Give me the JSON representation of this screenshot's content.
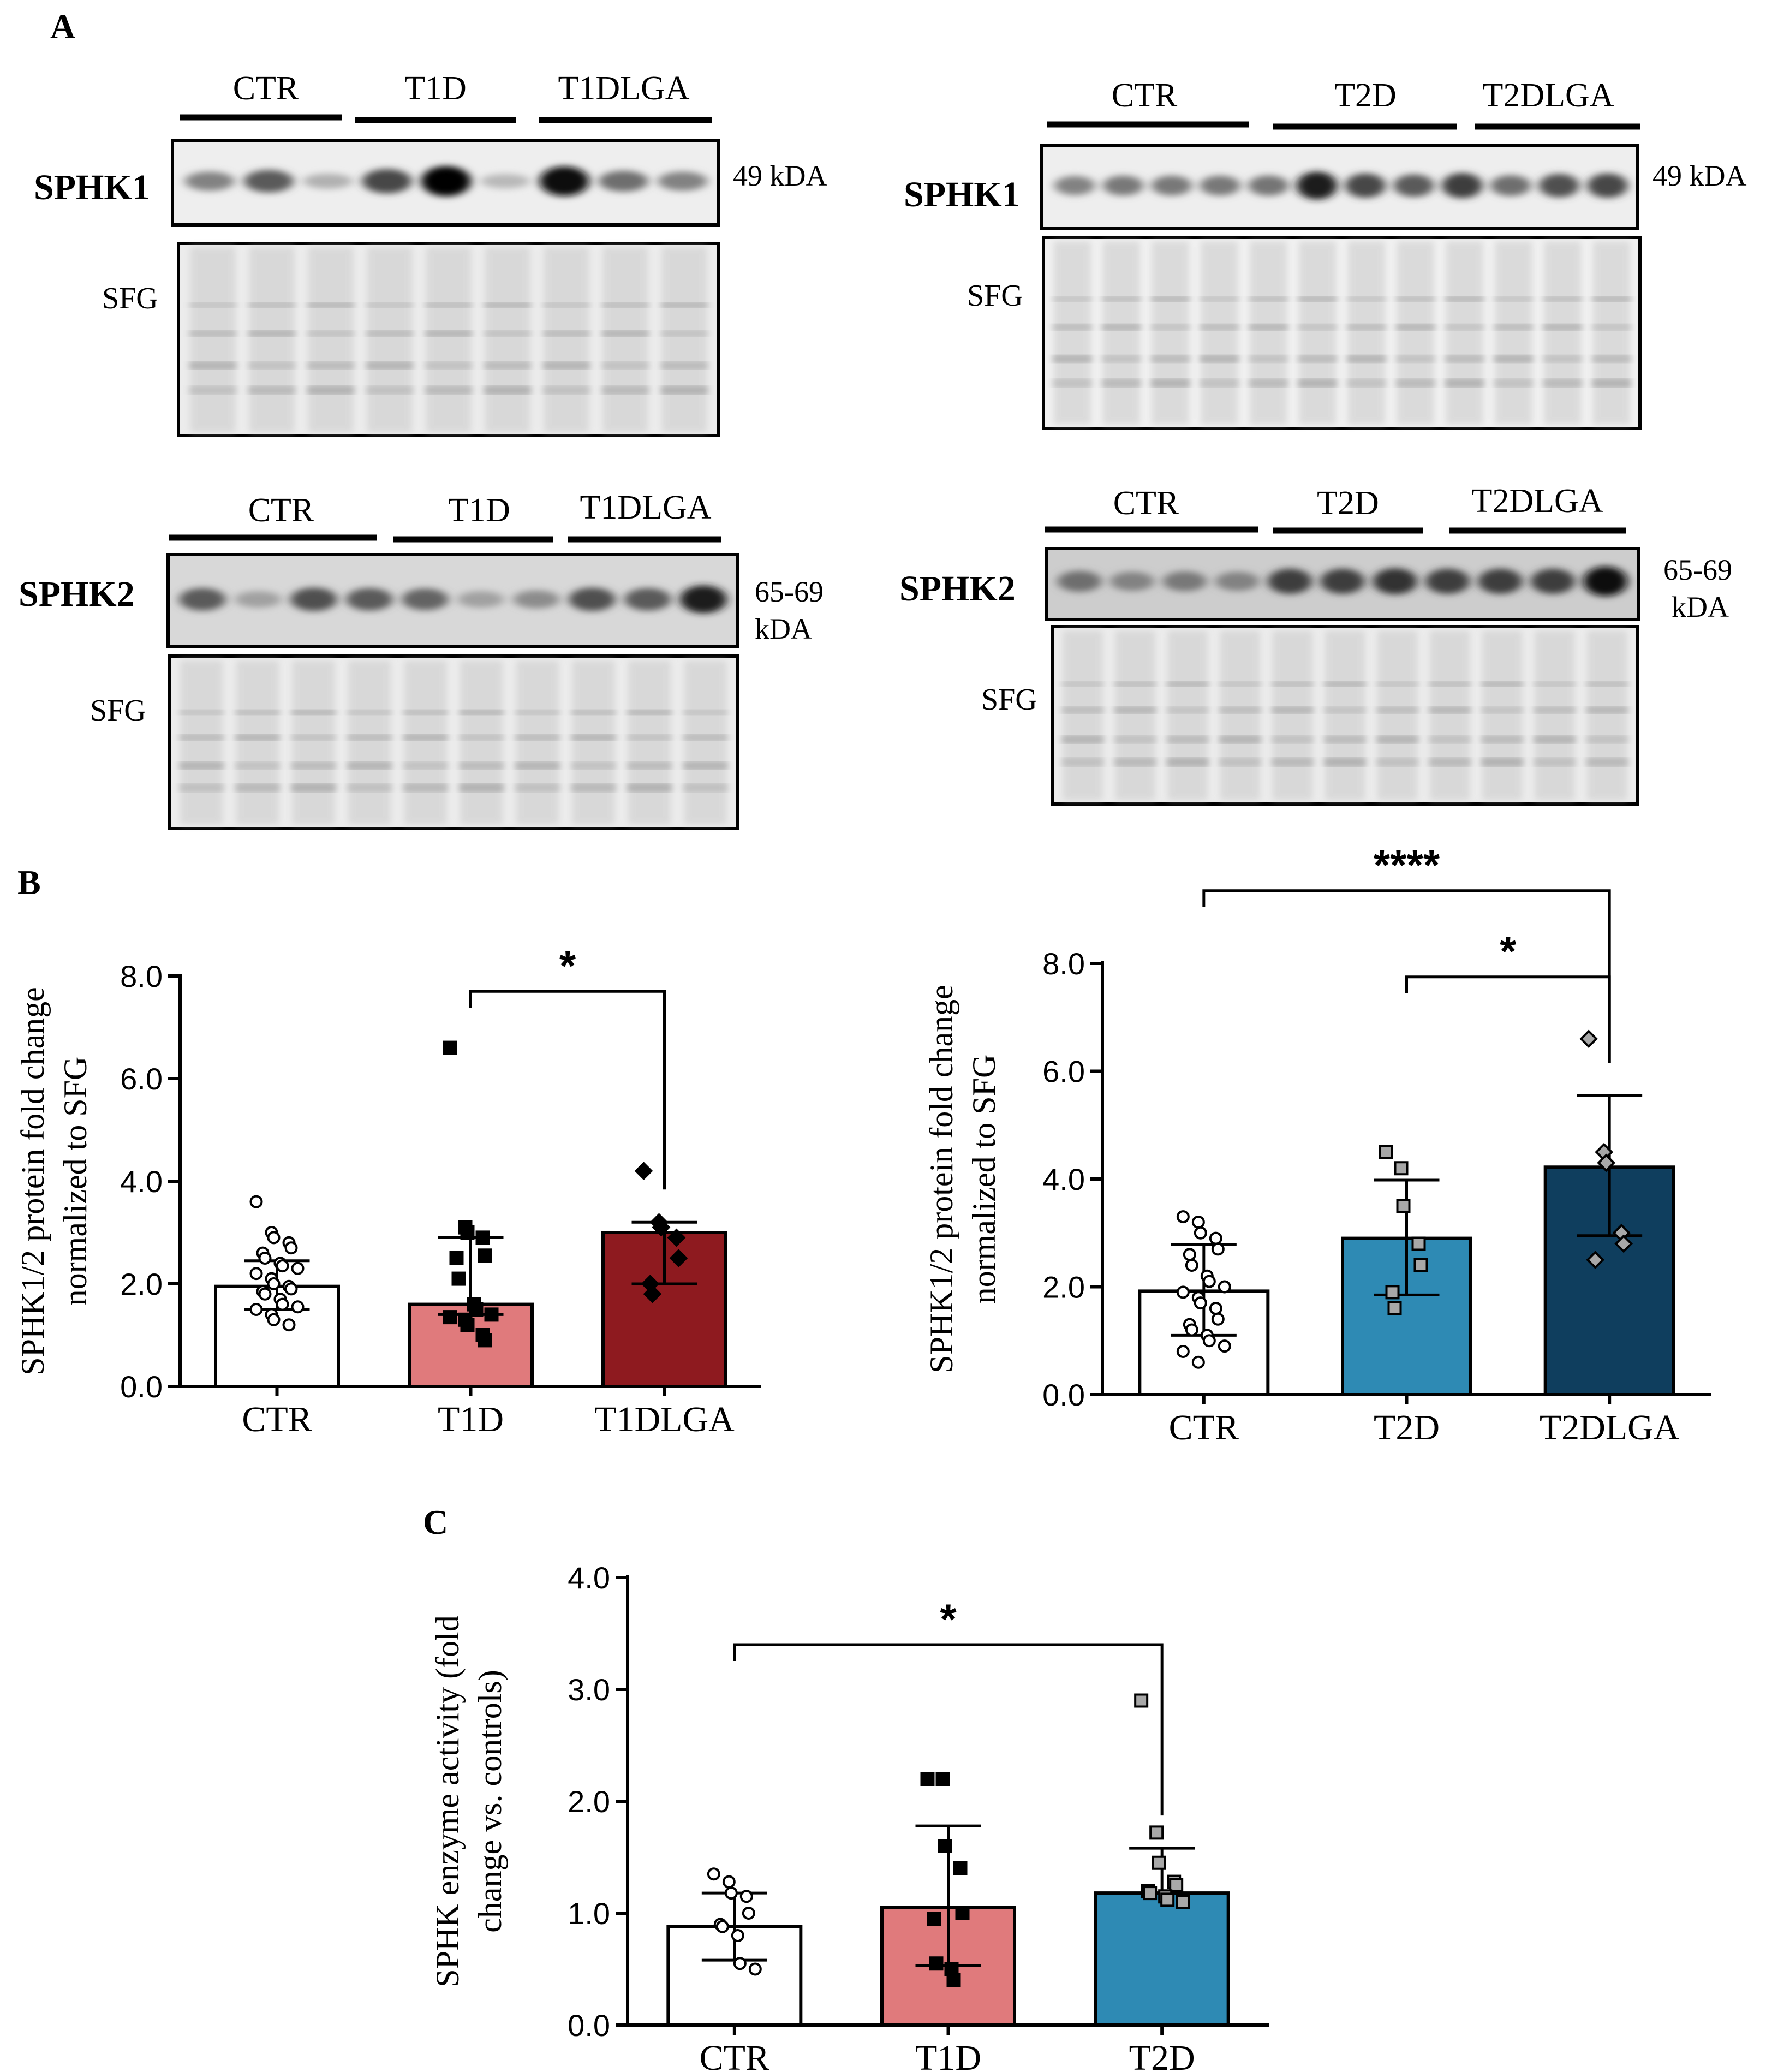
{
  "figure": {
    "panel_labels": {
      "a": "A",
      "b": "B",
      "c": "C"
    }
  },
  "blots": [
    {
      "id": "sphk1-t1",
      "protein": "SPHK1",
      "loading": "SFG",
      "size": "49 kDA",
      "groups": [
        "CTR",
        "T1D",
        "T1DLGA"
      ],
      "band_intensity": [
        0.35,
        0.55,
        0.12,
        0.65,
        0.98,
        0.08,
        0.95,
        0.45,
        0.35
      ]
    },
    {
      "id": "sphk1-t2",
      "protein": "SPHK1",
      "loading": "SFG",
      "size": "49 kDA",
      "groups": [
        "CTR",
        "T2D",
        "T2DLGA"
      ],
      "band_intensity": [
        0.35,
        0.4,
        0.4,
        0.4,
        0.42,
        0.85,
        0.65,
        0.55,
        0.7,
        0.45,
        0.6,
        0.65
      ]
    },
    {
      "id": "sphk2-t1",
      "protein": "SPHK2",
      "loading": "SFG",
      "size_line1": "65-69",
      "size_line2": "kDA",
      "groups": [
        "CTR",
        "T1D",
        "T1DLGA"
      ],
      "band_intensity": [
        0.55,
        0.2,
        0.6,
        0.55,
        0.5,
        0.2,
        0.3,
        0.6,
        0.55,
        0.85
      ]
    },
    {
      "id": "sphk2-t2",
      "protein": "SPHK2",
      "loading": "SFG",
      "size_line1": "65-69",
      "size_line2": "kDA",
      "groups": [
        "CTR",
        "T2D",
        "T2DLGA"
      ],
      "band_intensity": [
        0.45,
        0.35,
        0.4,
        0.35,
        0.7,
        0.7,
        0.75,
        0.7,
        0.7,
        0.7,
        0.95
      ]
    }
  ],
  "chart_data": [
    {
      "id": "panel-b-t1",
      "type": "bar",
      "ylabel_line1": "SPHK1/2 protein fold change",
      "ylabel_line2": "normalized to SFG",
      "ylim": [
        0,
        8
      ],
      "yticks": [
        "0.0",
        "2.0",
        "4.0",
        "6.0",
        "8.0"
      ],
      "categories": [
        "CTR",
        "T1D",
        "T1DLGA"
      ],
      "values": [
        1.95,
        1.6,
        3.0
      ],
      "error_low": [
        1.5,
        1.4,
        2.0
      ],
      "error_high": [
        2.45,
        2.9,
        3.2
      ],
      "colors": [
        "#ffffff",
        "#e07a7c",
        "#8e1a1f"
      ],
      "markers": [
        "circle-open",
        "square-filled",
        "diamond-filled"
      ],
      "points": [
        [
          3.6,
          3.0,
          2.9,
          2.8,
          2.7,
          2.6,
          2.5,
          2.4,
          2.35,
          2.3,
          2.2,
          2.1,
          2.0,
          1.95,
          1.9,
          1.85,
          1.8,
          1.7,
          1.6,
          1.55,
          1.5,
          1.4,
          1.3,
          1.2
        ],
        [
          6.6,
          3.1,
          3.0,
          2.9,
          2.55,
          2.5,
          2.1,
          1.6,
          1.5,
          1.4,
          1.35,
          1.3,
          1.2,
          1.0,
          0.9
        ],
        [
          4.2,
          3.2,
          3.1,
          2.9,
          2.5,
          2.0,
          1.8
        ]
      ],
      "significance": [
        {
          "from": 1,
          "to": 2,
          "label": "*",
          "y": 7.7
        }
      ]
    },
    {
      "id": "panel-b-t2",
      "type": "bar",
      "ylabel_line1": "SPHK1/2 protein fold change",
      "ylabel_line2": "normalized to SFG",
      "ylim": [
        0,
        8
      ],
      "yticks": [
        "0.0",
        "2.0",
        "4.0",
        "6.0",
        "8.0"
      ],
      "categories": [
        "CTR",
        "T2D",
        "T2DLGA"
      ],
      "values": [
        1.92,
        2.9,
        4.22
      ],
      "error_low": [
        1.1,
        1.85,
        2.95
      ],
      "error_high": [
        2.78,
        3.98,
        5.55
      ],
      "colors": [
        "#ffffff",
        "#2e8ab4",
        "#0f3e5e"
      ],
      "markers": [
        "circle-open",
        "square-gray",
        "diamond-gray"
      ],
      "points": [
        [
          3.3,
          3.2,
          3.0,
          2.9,
          2.7,
          2.6,
          2.4,
          2.2,
          2.1,
          2.0,
          1.9,
          1.8,
          1.7,
          1.6,
          1.4,
          1.3,
          1.2,
          1.1,
          1.0,
          0.9,
          0.8,
          0.6
        ],
        [
          4.5,
          4.2,
          3.5,
          2.8,
          2.4,
          1.9,
          1.6
        ],
        [
          6.6,
          4.5,
          4.3,
          3.0,
          2.8,
          2.5
        ]
      ],
      "significance": [
        {
          "from": 0,
          "to": 2,
          "label": "****",
          "y": 9.35
        },
        {
          "from": 1,
          "to": 2,
          "label": "*",
          "y": 7.75
        }
      ]
    },
    {
      "id": "panel-c",
      "type": "bar",
      "ylabel_line1": "SPHK enzyme activity (fold",
      "ylabel_line2": "change vs. controls)",
      "ylim": [
        0,
        4
      ],
      "yticks": [
        "0.0",
        "1.0",
        "2.0",
        "3.0",
        "4.0"
      ],
      "categories": [
        "CTR",
        "T1D",
        "T2D"
      ],
      "values": [
        0.88,
        1.05,
        1.18
      ],
      "error_low": [
        0.58,
        0.53,
        null
      ],
      "error_high": [
        1.18,
        1.78,
        1.58
      ],
      "colors": [
        "#ffffff",
        "#e07a7c",
        "#2e8ab4"
      ],
      "markers": [
        "circle-open",
        "square-filled",
        "square-gray"
      ],
      "points": [
        [
          1.35,
          1.28,
          1.18,
          1.15,
          1.0,
          0.9,
          0.88,
          0.8,
          0.55,
          0.5
        ],
        [
          2.2,
          2.2,
          1.6,
          1.4,
          1.0,
          0.95,
          0.55,
          0.5,
          0.4
        ],
        [
          2.9,
          1.72,
          1.45,
          1.28,
          1.25,
          1.2,
          1.18,
          1.15,
          1.12,
          1.1
        ]
      ],
      "significance": [
        {
          "from": 0,
          "to": 2,
          "label": "*",
          "y": 3.4
        }
      ]
    }
  ]
}
